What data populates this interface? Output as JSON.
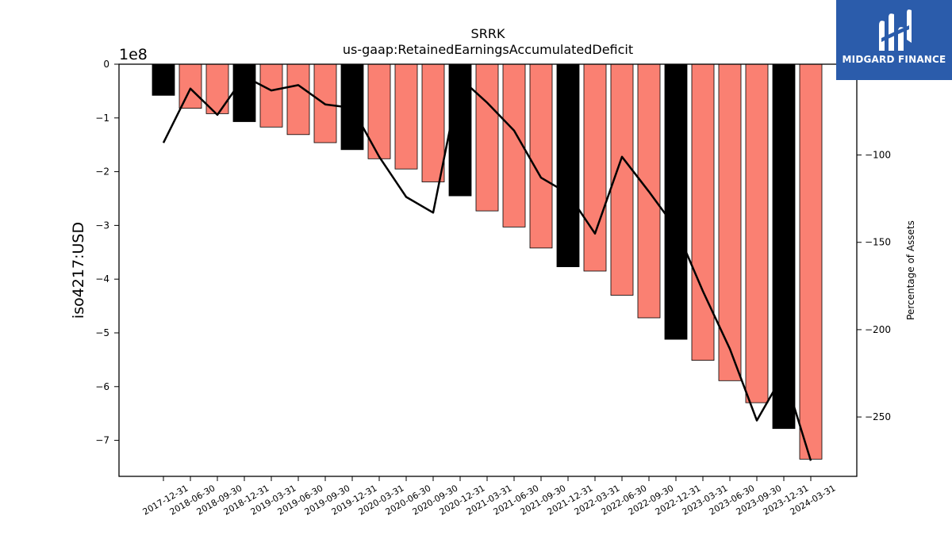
{
  "chart_data": {
    "type": "bar",
    "title": "SRRK",
    "subtitle": "us-gaap:RetainedEarningsAccumulatedDeficit",
    "ylabel": "iso4217:USD",
    "ylabel_right": "Percentage of Assets",
    "y_exponent_label": "1e8",
    "y_scale_factor": 100000000,
    "ylim": [
      -767000000,
      0
    ],
    "y_ticks": [
      0,
      -1,
      -2,
      -3,
      -4,
      -5,
      -6,
      -7
    ],
    "ylim_right": [
      -284,
      -48
    ],
    "y_ticks_right": [
      -100,
      -150,
      -200,
      -250
    ],
    "grid": false,
    "categories": [
      "2017-12-31",
      "2018-06-30",
      "2018-09-30",
      "2018-12-31",
      "2019-03-31",
      "2019-06-30",
      "2019-09-30",
      "2019-12-31",
      "2020-03-31",
      "2020-06-30",
      "2020-09-30",
      "2020-12-31",
      "2021-03-31",
      "2021-06-30",
      "2021-09-30",
      "2021-12-31",
      "2022-03-31",
      "2022-06-30",
      "2022-09-30",
      "2022-12-31",
      "2023-03-31",
      "2023-06-30",
      "2023-09-30",
      "2023-12-31",
      "2024-03-31"
    ],
    "series": [
      {
        "type": "bar",
        "values": [
          -58000000,
          -82000000,
          -92000000,
          -107000000,
          -117000000,
          -131000000,
          -146000000,
          -159000000,
          -176000000,
          -195000000,
          -219000000,
          -245000000,
          -273000000,
          -303000000,
          -342000000,
          -377000000,
          -385000000,
          -430000000,
          -472000000,
          -512000000,
          -551000000,
          -589000000,
          -630000000,
          -678000000,
          -735000000
        ],
        "annual_flags": [
          true,
          false,
          false,
          true,
          false,
          false,
          false,
          true,
          false,
          false,
          false,
          true,
          false,
          false,
          false,
          true,
          false,
          false,
          false,
          true,
          false,
          false,
          false,
          true,
          false
        ],
        "color_annual": "#000000",
        "color_quarterly": "#fa8072"
      },
      {
        "type": "line",
        "axis": "right",
        "values": [
          -93,
          -62,
          -77,
          -55,
          -63,
          -60,
          -71,
          -73,
          -101,
          -124,
          -133,
          -56,
          -70,
          -86,
          -113,
          -122,
          -145,
          -101,
          -121,
          -142,
          -178,
          -211,
          -252,
          -225,
          -275
        ],
        "color": "#000000"
      }
    ]
  },
  "logo": {
    "text": "MIDGARD FINANCE",
    "icon": "midgard-m-icon",
    "background": "#2b5cab"
  }
}
